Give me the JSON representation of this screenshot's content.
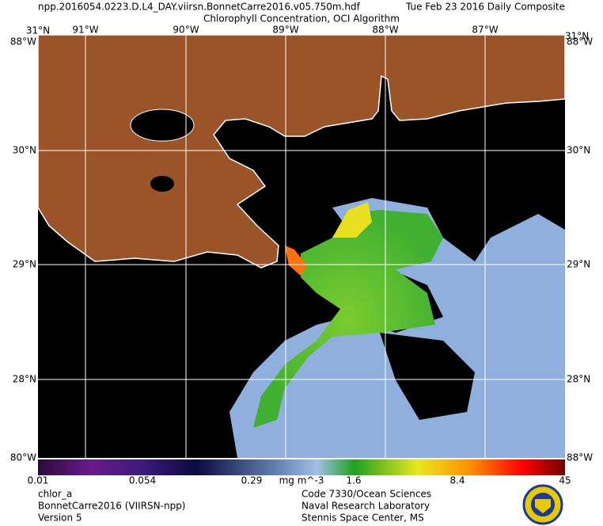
{
  "header": {
    "file": "npp.2016054.0223.D.L4_DAY.viirsn.BonnetCarre2016.v05.750m.hdf",
    "date": "Tue Feb 23 2016 Daily Composite",
    "subtitle": "Chlorophyll Concentration, OCI Algorithm"
  },
  "map": {
    "top_corner": "31°N",
    "corner_lon": "88°W",
    "bottom_corner": "80°W",
    "lon_labels": [
      "91°W",
      "90°W",
      "89°W",
      "88°W",
      "87°W"
    ],
    "lat_labels": [
      "30°N",
      "29°N",
      "28°N"
    ]
  },
  "colorbar": {
    "ticks": [
      "0.01",
      "0.054",
      "0.29",
      "1.6",
      "8.4",
      "45"
    ],
    "units": "mg m^-3"
  },
  "footer": {
    "left": [
      "chlor_a",
      "BonnetCarre2016 (VIIRSN-npp)",
      "Version 5"
    ],
    "right": [
      "Code 7330/Ocean Sciences",
      "Naval Research Laboratory",
      "Stennis Space Center, MS"
    ]
  }
}
